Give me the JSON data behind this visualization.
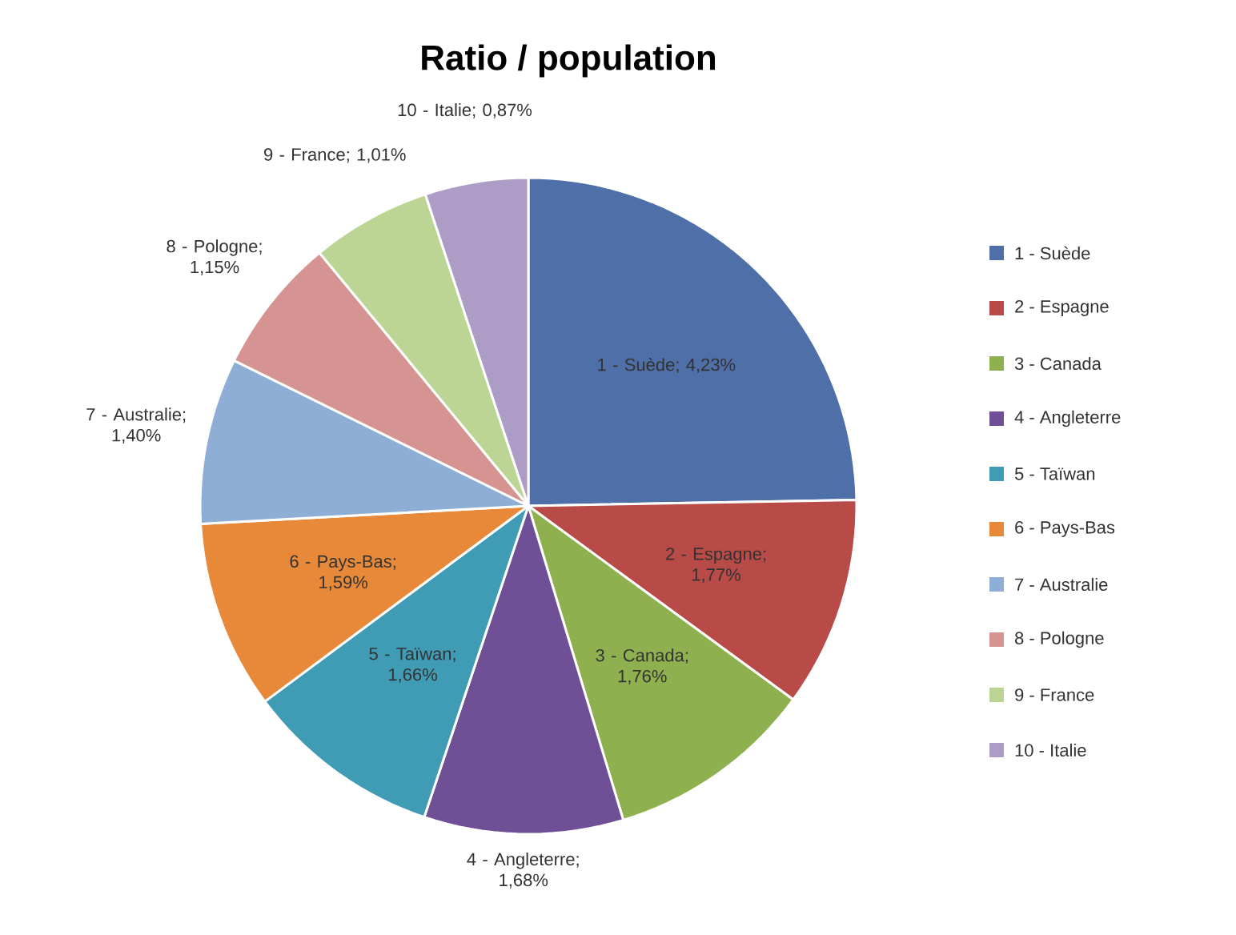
{
  "chart_data": {
    "type": "pie",
    "title": "Ratio / population",
    "categories": [
      "1 - Suède",
      "2 - Espagne",
      "3 - Canada",
      "4 - Angleterre",
      "5 - Taïwan",
      "6 - Pays-Bas",
      "7 - Australie",
      "8 - Pologne",
      "9 - France",
      "10 - Italie"
    ],
    "values": [
      4.23,
      1.77,
      1.76,
      1.68,
      1.66,
      1.59,
      1.4,
      1.15,
      1.01,
      0.87
    ],
    "value_labels": [
      "1 - Suède; 4,23%",
      "2 - Espagne; 1,77%",
      "3 - Canada; 1,76%",
      "4 - Angleterre; 1,68%",
      "5 - Taïwan; 1,66%",
      "6 - Pays-Bas; 1,59%",
      "7 - Australie; 1,40%",
      "8 - Pologne; 1,15%",
      "9 - France; 1,01%",
      "10 - Italie; 0,87%"
    ],
    "colors": [
      "#4f6fa8",
      "#b84a47",
      "#8fb04f",
      "#6f4f96",
      "#3f9cb4",
      "#e8893a",
      "#8eaed6",
      "#d59491",
      "#bcd494",
      "#ad9cc6"
    ],
    "legend": "right"
  }
}
